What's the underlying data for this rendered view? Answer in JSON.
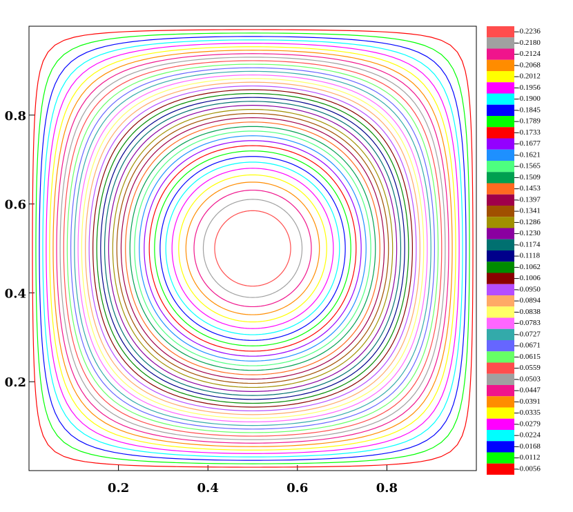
{
  "chart_data": {
    "type": "contour",
    "xlim": [
      0,
      1
    ],
    "ylim": [
      0,
      1
    ],
    "xticks": [
      0.2,
      0.4,
      0.6,
      0.8
    ],
    "yticks": [
      0.2,
      0.4,
      0.6,
      0.8
    ],
    "levels": [
      {
        "value": -0.2236,
        "label": "-0.2236",
        "color": "#ff4d4d"
      },
      {
        "value": -0.218,
        "label": "-0.2180",
        "color": "#a0a0a0"
      },
      {
        "value": -0.2124,
        "label": "-0.2124",
        "color": "#f0148c"
      },
      {
        "value": -0.2068,
        "label": "-0.2068",
        "color": "#ff8c00"
      },
      {
        "value": -0.2012,
        "label": "-0.2012",
        "color": "#ffff00"
      },
      {
        "value": -0.1956,
        "label": "-0.1956",
        "color": "#ff00ff"
      },
      {
        "value": -0.19,
        "label": "-0.1900",
        "color": "#00ffff"
      },
      {
        "value": -0.1845,
        "label": "-0.1845",
        "color": "#0000ff"
      },
      {
        "value": -0.1789,
        "label": "-0.1789",
        "color": "#00ff00"
      },
      {
        "value": -0.1733,
        "label": "-0.1733",
        "color": "#ff0000"
      },
      {
        "value": -0.1677,
        "label": "-0.1677",
        "color": "#9400ff"
      },
      {
        "value": -0.1621,
        "label": "-0.1621",
        "color": "#1e90ff"
      },
      {
        "value": -0.1565,
        "label": "-0.1565",
        "color": "#4dff80"
      },
      {
        "value": -0.1509,
        "label": "-0.1509",
        "color": "#00a050"
      },
      {
        "value": -0.1453,
        "label": "-0.1453",
        "color": "#ff6a20"
      },
      {
        "value": -0.1397,
        "label": "-0.1397",
        "color": "#a0004a"
      },
      {
        "value": -0.1341,
        "label": "-0.1341",
        "color": "#a05000"
      },
      {
        "value": -0.1286,
        "label": "-0.1286",
        "color": "#a09000"
      },
      {
        "value": -0.123,
        "label": "-0.1230",
        "color": "#8a00a0"
      },
      {
        "value": -0.1174,
        "label": "-0.1174",
        "color": "#007070"
      },
      {
        "value": -0.1118,
        "label": "-0.1118",
        "color": "#00008b"
      },
      {
        "value": -0.1062,
        "label": "-0.1062",
        "color": "#008b00"
      },
      {
        "value": -0.1006,
        "label": "-0.1006",
        "color": "#8b0000"
      },
      {
        "value": -0.095,
        "label": "-0.0950",
        "color": "#b44dff"
      },
      {
        "value": -0.0894,
        "label": "-0.0894",
        "color": "#ffaa66"
      },
      {
        "value": -0.0838,
        "label": "-0.0838",
        "color": "#ffff66"
      },
      {
        "value": -0.0783,
        "label": "-0.0783",
        "color": "#ff66ff"
      },
      {
        "value": -0.0727,
        "label": "-0.0727",
        "color": "#33aaaa"
      },
      {
        "value": -0.0671,
        "label": "-0.0671",
        "color": "#6666ff"
      },
      {
        "value": -0.0615,
        "label": "-0.0615",
        "color": "#66ff66"
      },
      {
        "value": -0.0559,
        "label": "-0.0559",
        "color": "#ff4d4d"
      },
      {
        "value": -0.0503,
        "label": "-0.0503",
        "color": "#a0a0a0"
      },
      {
        "value": -0.0447,
        "label": "-0.0447",
        "color": "#f0148c"
      },
      {
        "value": -0.0391,
        "label": "-0.0391",
        "color": "#ff8c00"
      },
      {
        "value": -0.0335,
        "label": "-0.0335",
        "color": "#ffff00"
      },
      {
        "value": -0.0279,
        "label": "-0.0279",
        "color": "#ff00ff"
      },
      {
        "value": -0.0224,
        "label": "-0.0224",
        "color": "#00ffff"
      },
      {
        "value": -0.0168,
        "label": "-0.0168",
        "color": "#0000ff"
      },
      {
        "value": -0.0112,
        "label": "-0.0112",
        "color": "#00ff00"
      },
      {
        "value": -0.0056,
        "label": "-0.0056",
        "color": "#ff0000"
      }
    ]
  }
}
